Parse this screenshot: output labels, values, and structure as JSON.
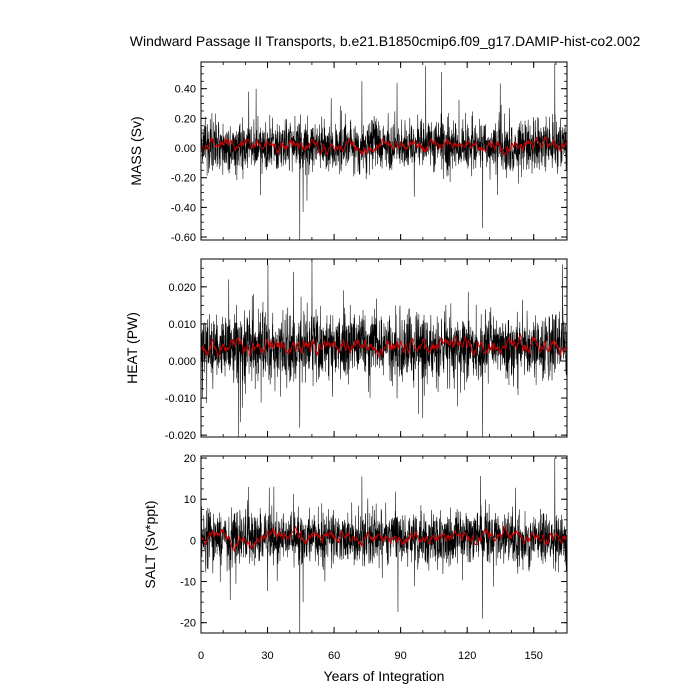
{
  "title": "Windward Passage II Transports, b.e21.B1850cmip6.f09_g17.DAMIP-hist-co2.002",
  "xlabel": "Years of Integration",
  "colors": {
    "raw": "#000000",
    "smooth": "#cc0000"
  },
  "chart_data": [
    {
      "type": "line",
      "ylabel": "MASS (Sv)",
      "xlim": [
        0,
        165
      ],
      "ylim": [
        -0.62,
        0.58
      ],
      "yticks": [
        -0.6,
        -0.4,
        -0.2,
        0.0,
        0.2,
        0.4
      ],
      "ytick_labels": [
        "-0.60",
        "-0.40",
        "-0.20",
        "0.00",
        "0.20",
        "0.40"
      ],
      "xticks": [
        0,
        30,
        60,
        90,
        120,
        150
      ],
      "series": [
        {
          "mean": 0.02,
          "std": 0.085
        },
        {
          "mean": 0.02,
          "amp": 0.035
        }
      ],
      "extremes": [
        [
          44.5,
          -0.62
        ],
        [
          72.5,
          0.45
        ],
        [
          127,
          -0.54
        ],
        [
          159.5,
          0.57
        ],
        [
          21.5,
          0.38
        ],
        [
          46,
          -0.43
        ]
      ]
    },
    {
      "type": "line",
      "ylabel": "HEAT (PW)",
      "xlim": [
        0,
        165
      ],
      "ylim": [
        -0.0205,
        0.0275
      ],
      "yticks": [
        -0.02,
        -0.01,
        0.0,
        0.01,
        0.02
      ],
      "ytick_labels": [
        "-0.020",
        "-0.010",
        "0.000",
        "0.010",
        "0.020"
      ],
      "xticks": [
        0,
        30,
        60,
        90,
        120,
        150
      ],
      "series": [
        {
          "mean": 0.0038,
          "std": 0.0045
        },
        {
          "mean": 0.0038,
          "amp": 0.0018
        }
      ],
      "extremes": [
        [
          50,
          0.027
        ],
        [
          17,
          -0.0205
        ],
        [
          127,
          -0.0205
        ],
        [
          44.5,
          -0.018
        ],
        [
          163,
          0.026
        ],
        [
          12.5,
          0.022
        ]
      ]
    },
    {
      "type": "line",
      "ylabel": "SALT (Sv*ppt)",
      "xlim": [
        0,
        165
      ],
      "ylim": [
        -22.5,
        20.5
      ],
      "yticks": [
        -20,
        -10,
        0,
        10,
        20
      ],
      "ytick_labels": [
        "-20",
        "-10",
        "0",
        "10",
        "20"
      ],
      "xticks": [
        0,
        30,
        60,
        90,
        120,
        150
      ],
      "xtick_labels": [
        "0",
        "30",
        "60",
        "90",
        "120",
        "150"
      ],
      "series": [
        {
          "mean": 0.8,
          "std": 3.2
        },
        {
          "mean": 0.8,
          "amp": 1.3
        }
      ],
      "extremes": [
        [
          44.5,
          -22.5
        ],
        [
          72.5,
          15.5
        ],
        [
          127,
          -19
        ],
        [
          159.5,
          20
        ],
        [
          46,
          -15
        ],
        [
          21.5,
          13
        ]
      ]
    }
  ]
}
